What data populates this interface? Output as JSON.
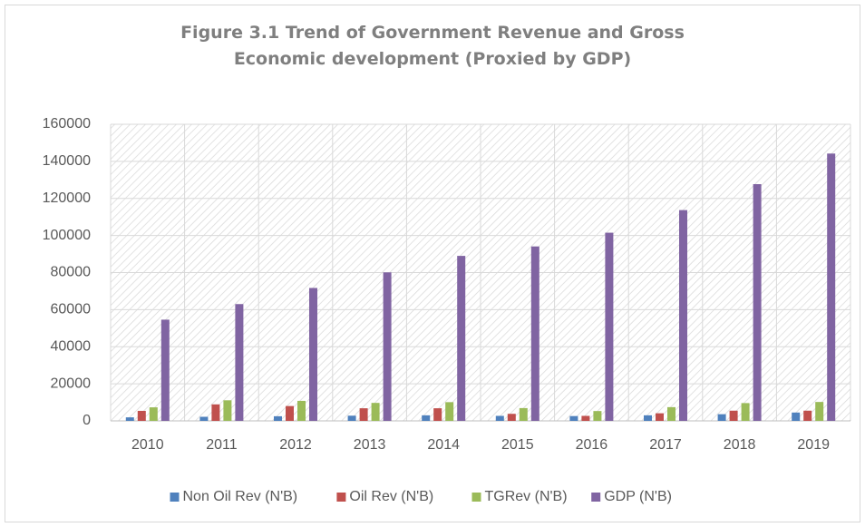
{
  "chart_data": {
    "type": "bar",
    "title": "Figure 3.1 Trend of Government Revenue and Gross Economic development (Proxied by GDP)",
    "categories": [
      "2010",
      "2011",
      "2012",
      "2013",
      "2014",
      "2015",
      "2016",
      "2017",
      "2018",
      "2019"
    ],
    "series": [
      {
        "name": "Non Oil Rev (N'B)",
        "color": "#4f81bd",
        "values": [
          1900,
          2200,
          2500,
          2800,
          3000,
          2700,
          2600,
          3000,
          3600,
          4500
        ]
      },
      {
        "name": "Oil Rev (N'B)",
        "color": "#c0504d",
        "values": [
          5400,
          8900,
          8000,
          6800,
          6800,
          3800,
          2700,
          4100,
          5500,
          5500
        ]
      },
      {
        "name": "TGRev (N'B)",
        "color": "#9bbb59",
        "values": [
          7300,
          11100,
          10800,
          9700,
          10100,
          6900,
          5300,
          7400,
          9600,
          10200
        ]
      },
      {
        "name": "GDP (N'B)",
        "color": "#8064a2",
        "values": [
          54600,
          63000,
          71700,
          80100,
          89000,
          94100,
          101500,
          113700,
          127700,
          144200
        ]
      }
    ],
    "ylim": [
      0,
      160000
    ],
    "yticks": [
      0,
      20000,
      40000,
      60000,
      80000,
      100000,
      120000,
      140000,
      160000
    ],
    "grid": true,
    "legend": "bottom"
  }
}
